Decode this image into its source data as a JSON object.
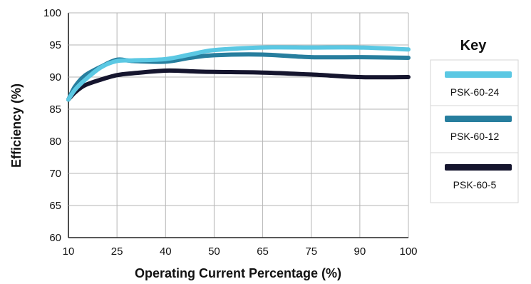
{
  "chart_data": {
    "type": "line",
    "title": "",
    "xlabel": "Operating Current Percentage (%)",
    "ylabel": "Efficiency (%)",
    "x_ticks": [
      "10",
      "25",
      "40",
      "50",
      "65",
      "75",
      "90",
      "100"
    ],
    "y_ticks": [
      "100",
      "95",
      "90",
      "85",
      "80",
      "70",
      "65",
      "60"
    ],
    "grid": true,
    "legend_title": "Key",
    "legend_position": "right",
    "series": [
      {
        "name": "PSK-60-24",
        "color": "#5bc8e3",
        "x": [
          "10",
          "12",
          "15",
          "20",
          "25",
          "30",
          "40",
          "45",
          "50",
          "65",
          "75",
          "90",
          "100"
        ],
        "values": [
          86.5,
          88,
          89.5,
          91.5,
          92.5,
          92.6,
          92.8,
          93.5,
          94.2,
          94.6,
          94.6,
          94.6,
          94.3
        ]
      },
      {
        "name": "PSK-60-12",
        "color": "#277e9e",
        "x": [
          "10",
          "12",
          "15",
          "20",
          "25",
          "30",
          "40",
          "45",
          "50",
          "65",
          "75",
          "90",
          "100"
        ],
        "values": [
          86.5,
          88.5,
          90.2,
          91.6,
          92.7,
          92.5,
          92.4,
          93.0,
          93.4,
          93.5,
          93.1,
          93.1,
          93.0
        ]
      },
      {
        "name": "PSK-60-5",
        "color": "#15152e",
        "x": [
          "10",
          "12",
          "15",
          "20",
          "25",
          "30",
          "40",
          "45",
          "50",
          "65",
          "75",
          "90",
          "100"
        ],
        "values": [
          86.5,
          87.6,
          88.7,
          89.6,
          90.3,
          90.6,
          91.0,
          90.9,
          90.8,
          90.7,
          90.4,
          90.0,
          90.0
        ]
      }
    ]
  }
}
